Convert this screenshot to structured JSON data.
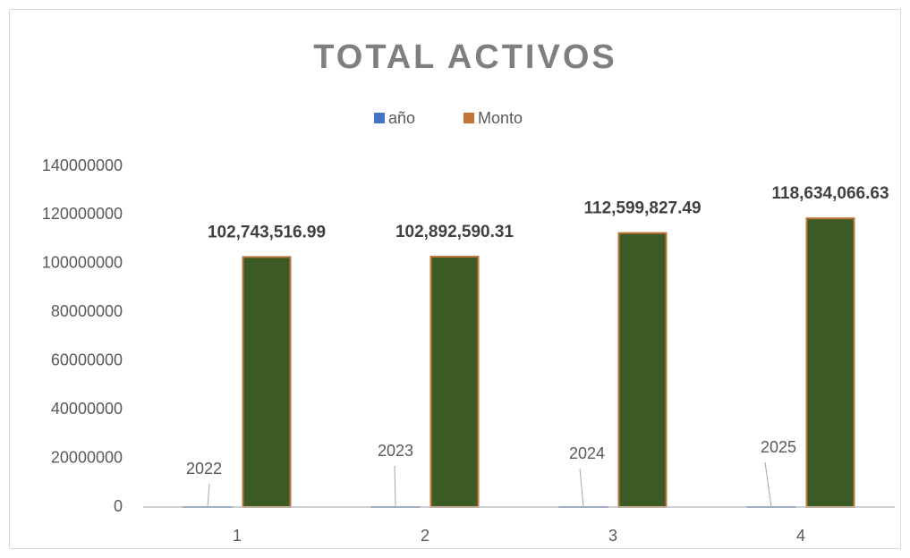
{
  "chart_data": {
    "type": "bar",
    "title": "TOTAL ACTIVOS",
    "categories": [
      "1",
      "2",
      "3",
      "4"
    ],
    "series": [
      {
        "name": "año",
        "color": "#4472c4",
        "values": [
          2022,
          2023,
          2024,
          2025
        ]
      },
      {
        "name": "Monto",
        "color": "#c0763a",
        "fill": "#3b5a24",
        "values": [
          102743516.99,
          102892590.31,
          112599827.49,
          118634066.63
        ],
        "value_labels": [
          "102,743,516.99",
          "102,892,590.31",
          "112,599,827.49",
          "118,634,066.63"
        ]
      }
    ],
    "ylim": [
      0,
      140000000
    ],
    "yticks": [
      0,
      20000000,
      40000000,
      60000000,
      80000000,
      100000000,
      120000000,
      140000000
    ],
    "legend": "top",
    "grid": false
  }
}
